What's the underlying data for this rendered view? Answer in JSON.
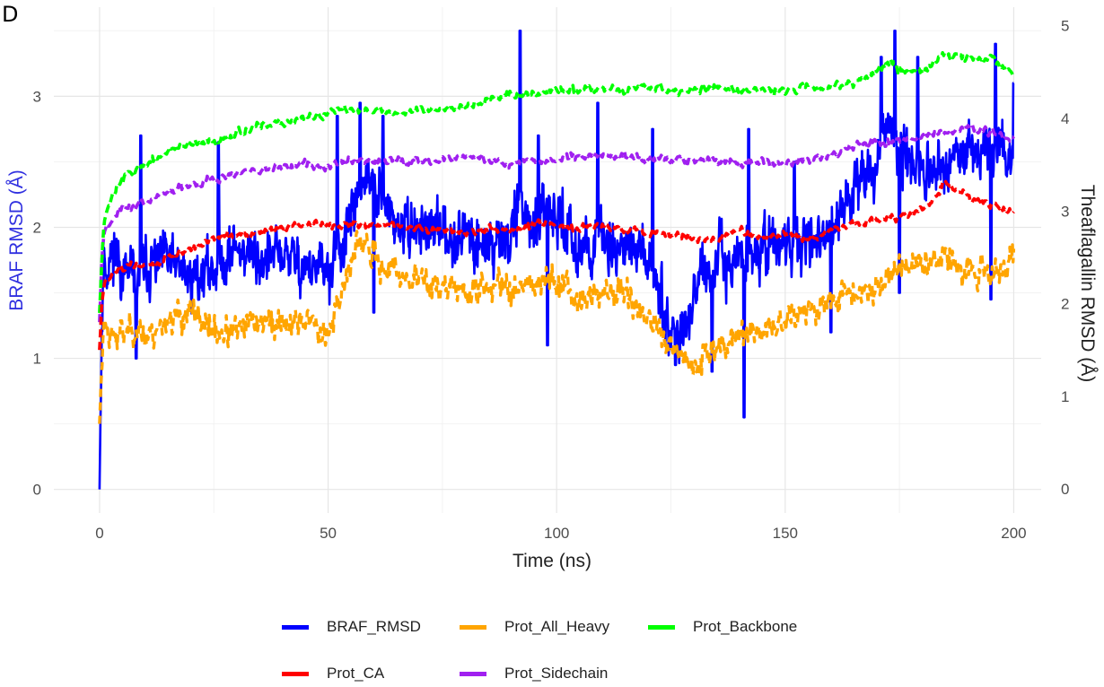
{
  "panel_label": "D",
  "chart_data": {
    "type": "line",
    "title": "",
    "xlabel": "Time (ns)",
    "ylabel_left": "BRAF RMSD (Å)",
    "ylabel_right": "Theaflagallin RMSD (Å)",
    "xlim": [
      -10,
      206
    ],
    "ylim_left": [
      -0.18,
      3.68
    ],
    "ylim_right": [
      -0.26,
      5.2
    ],
    "x_ticks": [
      0,
      50,
      100,
      150,
      200
    ],
    "y_ticks_left": [
      0,
      1,
      2,
      3
    ],
    "y_ticks_right": [
      0,
      1,
      2,
      3,
      4,
      5
    ],
    "grid": true,
    "legend_position": "bottom",
    "series": [
      {
        "name": "BRAF_RMSD",
        "axis": "left",
        "color": "#0000FF",
        "style": "solid",
        "x": [
          0,
          0.5,
          1,
          2,
          3,
          5,
          8,
          10,
          15,
          20,
          25,
          30,
          35,
          40,
          45,
          50,
          55,
          57,
          60,
          65,
          70,
          75,
          80,
          85,
          90,
          92,
          95,
          100,
          105,
          110,
          115,
          120,
          123,
          125,
          128,
          130,
          135,
          140,
          145,
          150,
          155,
          160,
          165,
          170,
          173,
          175,
          180,
          185,
          190,
          195,
          200
        ],
        "y": [
          0.0,
          1.3,
          1.75,
          1.7,
          1.85,
          1.65,
          1.6,
          1.7,
          1.75,
          1.6,
          1.7,
          1.85,
          1.75,
          1.8,
          1.7,
          1.65,
          2.0,
          2.4,
          2.3,
          2.0,
          2.0,
          1.95,
          1.95,
          1.85,
          1.95,
          2.2,
          2.0,
          2.1,
          1.85,
          1.9,
          1.85,
          1.75,
          1.5,
          1.2,
          1.25,
          1.5,
          1.7,
          1.75,
          1.85,
          1.85,
          1.9,
          2.0,
          2.3,
          2.45,
          2.9,
          2.6,
          2.4,
          2.5,
          2.55,
          2.6,
          2.5
        ],
        "spikes": [
          [
            9,
            2.7
          ],
          [
            26,
            2.65
          ],
          [
            52,
            2.85
          ],
          [
            57,
            2.95
          ],
          [
            62,
            2.85
          ],
          [
            92,
            3.5
          ],
          [
            96,
            2.7
          ],
          [
            109,
            2.95
          ],
          [
            121,
            2.75
          ],
          [
            142,
            2.75
          ],
          [
            152,
            2.5
          ],
          [
            171,
            3.3
          ],
          [
            174,
            3.5
          ],
          [
            179,
            3.3
          ],
          [
            196,
            3.4
          ],
          [
            200,
            3.1
          ]
        ],
        "dips": [
          [
            8,
            1.0
          ],
          [
            60,
            1.35
          ],
          [
            98,
            1.1
          ],
          [
            126,
            0.95
          ],
          [
            134,
            0.9
          ],
          [
            141,
            0.55
          ],
          [
            160,
            1.2
          ],
          [
            175,
            1.5
          ],
          [
            195,
            1.45
          ]
        ]
      },
      {
        "name": "Prot_All_Heavy",
        "axis": "left",
        "color": "#FFA500",
        "style": "dashed",
        "x": [
          0,
          0.5,
          1,
          3,
          5,
          8,
          10,
          15,
          20,
          25,
          30,
          35,
          40,
          45,
          50,
          52,
          55,
          58,
          60,
          65,
          70,
          75,
          80,
          85,
          90,
          95,
          100,
          105,
          110,
          115,
          120,
          125,
          130,
          135,
          140,
          145,
          150,
          155,
          160,
          165,
          170,
          175,
          180,
          185,
          190,
          195,
          200
        ],
        "y": [
          0.5,
          1.0,
          1.3,
          1.15,
          1.2,
          1.25,
          1.15,
          1.3,
          1.35,
          1.2,
          1.2,
          1.3,
          1.25,
          1.3,
          1.2,
          1.4,
          1.75,
          1.9,
          1.75,
          1.65,
          1.6,
          1.55,
          1.5,
          1.55,
          1.55,
          1.6,
          1.6,
          1.45,
          1.5,
          1.5,
          1.3,
          1.05,
          0.95,
          1.1,
          1.2,
          1.2,
          1.3,
          1.35,
          1.45,
          1.5,
          1.55,
          1.7,
          1.7,
          1.8,
          1.7,
          1.65,
          1.75
        ]
      },
      {
        "name": "Prot_Backbone",
        "axis": "right",
        "color": "#00FF00",
        "style": "dashed",
        "x": [
          0,
          0.5,
          1,
          2,
          3,
          5,
          8,
          10,
          12,
          15,
          18,
          20,
          25,
          30,
          35,
          40,
          45,
          50,
          55,
          60,
          65,
          70,
          75,
          80,
          85,
          90,
          95,
          100,
          105,
          110,
          115,
          120,
          125,
          130,
          135,
          140,
          145,
          150,
          155,
          160,
          165,
          170,
          173,
          175,
          180,
          185,
          190,
          195,
          198,
          200
        ],
        "y": [
          1.9,
          2.5,
          2.9,
          3.05,
          3.2,
          3.35,
          3.45,
          3.5,
          3.55,
          3.65,
          3.7,
          3.7,
          3.75,
          3.85,
          3.9,
          3.95,
          4.0,
          4.05,
          4.1,
          4.1,
          4.05,
          4.1,
          4.1,
          4.15,
          4.2,
          4.25,
          4.25,
          4.3,
          4.3,
          4.35,
          4.3,
          4.35,
          4.3,
          4.3,
          4.35,
          4.3,
          4.3,
          4.3,
          4.35,
          4.35,
          4.4,
          4.5,
          4.6,
          4.55,
          4.5,
          4.7,
          4.65,
          4.65,
          4.55,
          4.45
        ]
      },
      {
        "name": "Prot_CA",
        "axis": "right",
        "color": "#FF0000",
        "style": "dashed",
        "x": [
          0,
          0.5,
          1,
          3,
          5,
          10,
          15,
          20,
          25,
          30,
          35,
          40,
          45,
          50,
          55,
          60,
          65,
          70,
          75,
          80,
          85,
          90,
          95,
          100,
          105,
          110,
          115,
          120,
          125,
          130,
          135,
          140,
          145,
          150,
          155,
          160,
          165,
          170,
          175,
          180,
          185,
          190,
          195,
          200
        ],
        "y": [
          1.5,
          2.0,
          2.2,
          2.35,
          2.4,
          2.4,
          2.5,
          2.6,
          2.7,
          2.75,
          2.75,
          2.8,
          2.85,
          2.85,
          2.85,
          2.85,
          2.85,
          2.8,
          2.8,
          2.75,
          2.8,
          2.8,
          2.85,
          2.85,
          2.8,
          2.85,
          2.8,
          2.75,
          2.75,
          2.7,
          2.7,
          2.8,
          2.7,
          2.75,
          2.7,
          2.8,
          2.85,
          2.9,
          2.95,
          3.0,
          3.3,
          3.15,
          3.05,
          3.0
        ]
      },
      {
        "name": "Prot_Sidechain",
        "axis": "right",
        "color": "#A020F0",
        "style": "dashed",
        "x": [
          0,
          0.5,
          1,
          3,
          5,
          8,
          10,
          15,
          20,
          25,
          30,
          35,
          40,
          45,
          50,
          55,
          60,
          65,
          70,
          75,
          80,
          85,
          90,
          95,
          100,
          105,
          110,
          115,
          120,
          125,
          130,
          135,
          140,
          145,
          150,
          155,
          160,
          165,
          170,
          175,
          180,
          185,
          190,
          195,
          200
        ],
        "y": [
          1.8,
          2.5,
          2.8,
          2.95,
          3.0,
          3.05,
          3.1,
          3.2,
          3.3,
          3.35,
          3.4,
          3.45,
          3.45,
          3.5,
          3.5,
          3.55,
          3.55,
          3.55,
          3.55,
          3.55,
          3.6,
          3.55,
          3.5,
          3.55,
          3.55,
          3.6,
          3.6,
          3.6,
          3.55,
          3.55,
          3.55,
          3.55,
          3.5,
          3.55,
          3.5,
          3.55,
          3.6,
          3.7,
          3.75,
          3.75,
          3.8,
          3.85,
          3.9,
          3.85,
          3.75
        ]
      }
    ]
  }
}
